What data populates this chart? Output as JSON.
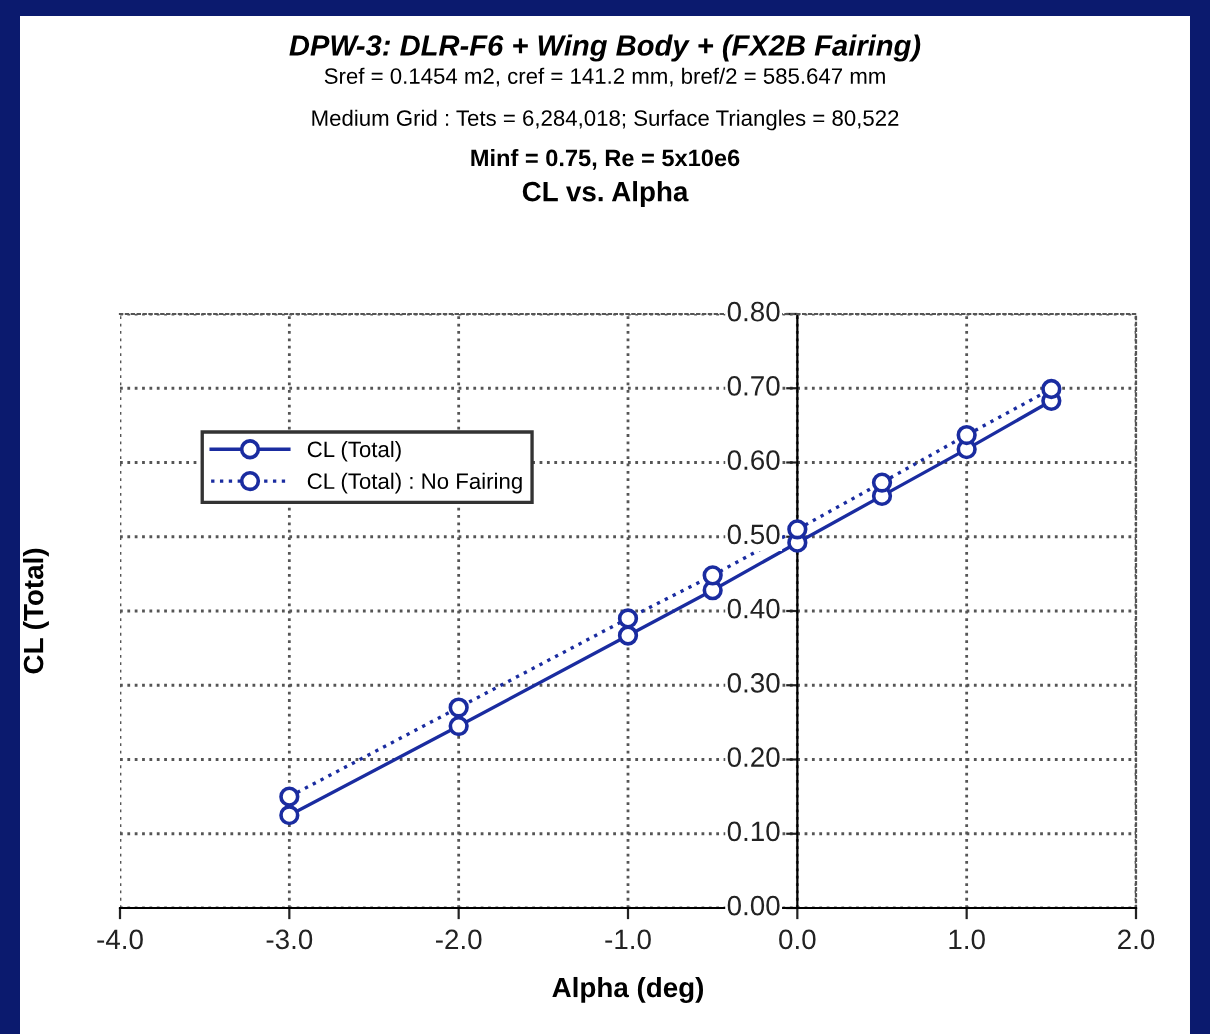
{
  "chart_data": {
    "type": "line",
    "title": "DPW-3: DLR-F6 + Wing Body + (FX2B Fairing)",
    "subtitle": "Sref = 0.1454 m2, cref = 141.2 mm, bref/2 = 585.647 mm",
    "annotations": [
      "Medium Grid : Tets = 6,284,018; Surface Triangles = 80,522",
      "Minf = 0.75, Re = 5x10e6",
      "CL vs. Alpha"
    ],
    "xlabel": "Alpha (deg)",
    "ylabel": "CL (Total)",
    "x": [
      -3.0,
      -2.0,
      -1.0,
      -0.5,
      0.0,
      0.5,
      1.0,
      1.5
    ],
    "series": [
      {
        "name": "CL (Total)",
        "color": "#1a2ca0",
        "line_style": "solid",
        "values": [
          0.125,
          0.245,
          0.367,
          0.428,
          0.492,
          0.555,
          0.618,
          0.683
        ]
      },
      {
        "name": "CL (Total) : No Fairing",
        "color": "#1a2ca0",
        "line_style": "dotted",
        "values": [
          0.15,
          0.27,
          0.39,
          0.448,
          0.51,
          0.573,
          0.637,
          0.699
        ]
      }
    ],
    "marker": "circle",
    "xlim": [
      -4.0,
      2.0
    ],
    "xticks": [
      {
        "value": -4.0,
        "label": "-4.0"
      },
      {
        "value": -3.0,
        "label": "-3.0"
      },
      {
        "value": -2.0,
        "label": "-2.0"
      },
      {
        "value": -1.0,
        "label": "-1.0"
      },
      {
        "value": 0.0,
        "label": "0.0"
      },
      {
        "value": 1.0,
        "label": "1.0"
      },
      {
        "value": 2.0,
        "label": "2.0"
      }
    ],
    "ylim": [
      0.0,
      0.8
    ],
    "yticks": [
      {
        "value": 0.0,
        "label": "0.00"
      },
      {
        "value": 0.1,
        "label": "0.10"
      },
      {
        "value": 0.2,
        "label": "0.20"
      },
      {
        "value": 0.3,
        "label": "0.30"
      },
      {
        "value": 0.4,
        "label": "0.40"
      },
      {
        "value": 0.5,
        "label": "0.50"
      },
      {
        "value": 0.6,
        "label": "0.60"
      },
      {
        "value": 0.7,
        "label": "0.70"
      },
      {
        "value": 0.8,
        "label": "0.80"
      }
    ],
    "grid": true,
    "legend": "top left"
  }
}
